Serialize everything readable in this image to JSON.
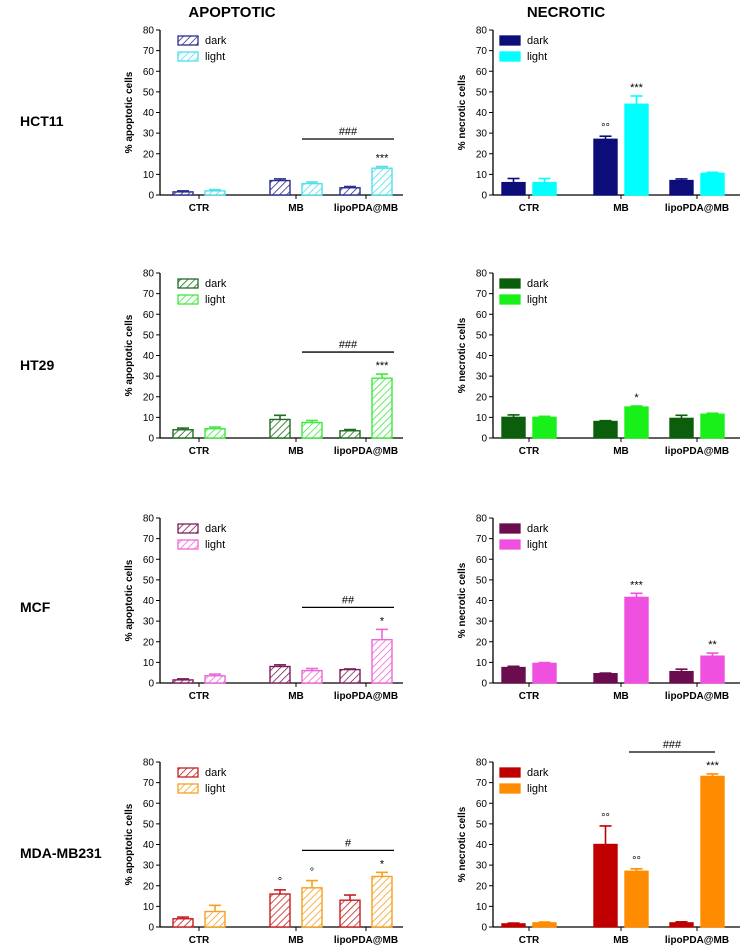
{
  "headers": {
    "left": "APOPTOTIC",
    "right": "NECROTIC"
  },
  "rows": [
    "HCT11",
    "HT29",
    "MCF",
    "MDA-MB231"
  ],
  "legend": {
    "dark": "dark",
    "light": "light"
  },
  "chart_data": [
    {
      "type": "bar",
      "row": "HCT11",
      "panel": "apoptotic",
      "ylabel": "% apoptotic cells",
      "ylim": [
        0,
        80
      ],
      "yticks": [
        0,
        10,
        20,
        30,
        40,
        50,
        60,
        70,
        80
      ],
      "categories": [
        "CTR",
        "MB",
        "lipoPDA@MB"
      ],
      "hatched": true,
      "colors": {
        "dark": "#2b2e8c",
        "light": "#4fe0e8"
      },
      "series": [
        {
          "name": "dark",
          "values": [
            1.5,
            7,
            3.5
          ],
          "errors": [
            0.5,
            0.8,
            0.6
          ],
          "marks": [
            "",
            "",
            ""
          ]
        },
        {
          "name": "light",
          "values": [
            2,
            5.5,
            13
          ],
          "errors": [
            0.6,
            0.8,
            0.8
          ],
          "marks": [
            "",
            "",
            "***"
          ]
        }
      ],
      "bracket": {
        "from": "MB",
        "to": "lipoPDA@MB",
        "label": "###"
      }
    },
    {
      "type": "bar",
      "row": "HCT11",
      "panel": "necrotic",
      "ylabel": "% necrotic cells",
      "ylim": [
        0,
        80
      ],
      "yticks": [
        0,
        10,
        20,
        30,
        40,
        50,
        60,
        70,
        80
      ],
      "categories": [
        "CTR",
        "MB",
        "lipoPDA@MB"
      ],
      "hatched": false,
      "colors": {
        "dark": "#0d0d7a",
        "light": "#00ffff"
      },
      "series": [
        {
          "name": "dark",
          "values": [
            6,
            27,
            7
          ],
          "errors": [
            2,
            1.5,
            0.8
          ],
          "marks": [
            "",
            "°°",
            ""
          ]
        },
        {
          "name": "light",
          "values": [
            6,
            44,
            10.5
          ],
          "errors": [
            2,
            4,
            0.5
          ],
          "marks": [
            "",
            "***",
            ""
          ]
        }
      ],
      "bracket": null
    },
    {
      "type": "bar",
      "row": "HT29",
      "panel": "apoptotic",
      "ylabel": "% apoptotic cells",
      "ylim": [
        0,
        80
      ],
      "yticks": [
        0,
        10,
        20,
        30,
        40,
        50,
        60,
        70,
        80
      ],
      "categories": [
        "CTR",
        "MB",
        "lipoPDA@MB"
      ],
      "hatched": true,
      "colors": {
        "dark": "#1f6b1f",
        "light": "#3ee83e"
      },
      "series": [
        {
          "name": "dark",
          "values": [
            4,
            9,
            3.5
          ],
          "errors": [
            0.8,
            2,
            0.6
          ],
          "marks": [
            "",
            "",
            ""
          ]
        },
        {
          "name": "light",
          "values": [
            4.5,
            7.5,
            29
          ],
          "errors": [
            0.8,
            1,
            2
          ],
          "marks": [
            "",
            "",
            "***"
          ]
        }
      ],
      "bracket": {
        "from": "MB",
        "to": "lipoPDA@MB",
        "label": "###"
      }
    },
    {
      "type": "bar",
      "row": "HT29",
      "panel": "necrotic",
      "ylabel": "% necrotic cells",
      "ylim": [
        0,
        80
      ],
      "yticks": [
        0,
        10,
        20,
        30,
        40,
        50,
        60,
        70,
        80
      ],
      "categories": [
        "CTR",
        "MB",
        "lipoPDA@MB"
      ],
      "hatched": false,
      "colors": {
        "dark": "#0b5e0b",
        "light": "#19f019"
      },
      "series": [
        {
          "name": "dark",
          "values": [
            10,
            8,
            9.5
          ],
          "errors": [
            1.2,
            0.4,
            1.5
          ],
          "marks": [
            "",
            "",
            ""
          ]
        },
        {
          "name": "light",
          "values": [
            10,
            15,
            11.5
          ],
          "errors": [
            0.5,
            0.5,
            0.5
          ],
          "marks": [
            "",
            "*",
            ""
          ]
        }
      ],
      "bracket": null
    },
    {
      "type": "bar",
      "row": "MCF",
      "panel": "apoptotic",
      "ylabel": "% apoptotic cells",
      "ylim": [
        0,
        80
      ],
      "yticks": [
        0,
        10,
        20,
        30,
        40,
        50,
        60,
        70,
        80
      ],
      "categories": [
        "CTR",
        "MB",
        "lipoPDA@MB"
      ],
      "hatched": true,
      "colors": {
        "dark": "#7a1f5a",
        "light": "#ee66d6"
      },
      "series": [
        {
          "name": "dark",
          "values": [
            1.5,
            8,
            6.5
          ],
          "errors": [
            0.5,
            0.8,
            0.3
          ],
          "marks": [
            "",
            "",
            ""
          ]
        },
        {
          "name": "light",
          "values": [
            3.5,
            6,
            21
          ],
          "errors": [
            0.8,
            1,
            5
          ],
          "marks": [
            "",
            "",
            "*"
          ]
        }
      ],
      "bracket": {
        "from": "MB",
        "to": "lipoPDA@MB",
        "label": "##"
      }
    },
    {
      "type": "bar",
      "row": "MCF",
      "panel": "necrotic",
      "ylabel": "% necrotic cells",
      "ylim": [
        0,
        80
      ],
      "yticks": [
        0,
        10,
        20,
        30,
        40,
        50,
        60,
        70,
        80
      ],
      "categories": [
        "CTR",
        "MB",
        "lipoPDA@MB"
      ],
      "hatched": false,
      "colors": {
        "dark": "#6a0d4e",
        "light": "#f050e0"
      },
      "series": [
        {
          "name": "dark",
          "values": [
            7.5,
            4.5,
            5.5
          ],
          "errors": [
            0.6,
            0.3,
            1.2
          ],
          "marks": [
            "",
            "",
            ""
          ]
        },
        {
          "name": "light",
          "values": [
            9.5,
            41.5,
            13
          ],
          "errors": [
            0.4,
            2,
            1.5
          ],
          "marks": [
            "",
            "***",
            "**"
          ]
        }
      ],
      "bracket": null
    },
    {
      "type": "bar",
      "row": "MDA-MB231",
      "panel": "apoptotic",
      "ylabel": "% apoptotic cells",
      "ylim": [
        0,
        80
      ],
      "yticks": [
        0,
        10,
        20,
        30,
        40,
        50,
        60,
        70,
        80
      ],
      "categories": [
        "CTR",
        "MB",
        "lipoPDA@MB"
      ],
      "hatched": true,
      "colors": {
        "dark": "#c81e1e",
        "light": "#f5a020"
      },
      "series": [
        {
          "name": "dark",
          "values": [
            4,
            16,
            13
          ],
          "errors": [
            0.8,
            2,
            2.5
          ],
          "marks": [
            "",
            "°",
            ""
          ]
        },
        {
          "name": "light",
          "values": [
            7.5,
            19,
            24.5
          ],
          "errors": [
            3,
            3.5,
            2
          ],
          "marks": [
            "",
            "°",
            "*"
          ]
        }
      ],
      "bracket": {
        "from": "MB",
        "to": "lipoPDA@MB",
        "label": "#"
      }
    },
    {
      "type": "bar",
      "row": "MDA-MB231",
      "panel": "necrotic",
      "ylabel": "% necrotic cells",
      "ylim": [
        0,
        80
      ],
      "yticks": [
        0,
        10,
        20,
        30,
        40,
        50,
        60,
        70,
        80
      ],
      "categories": [
        "CTR",
        "MB",
        "lipoPDA@MB"
      ],
      "hatched": false,
      "colors": {
        "dark": "#c00000",
        "light": "#ff8c00"
      },
      "series": [
        {
          "name": "dark",
          "values": [
            1.5,
            40,
            2
          ],
          "errors": [
            0.4,
            9,
            0.5
          ],
          "marks": [
            "",
            "°°",
            ""
          ]
        },
        {
          "name": "light",
          "values": [
            2,
            27,
            73
          ],
          "errors": [
            0.4,
            1.2,
            1.2
          ],
          "marks": [
            "",
            "°°",
            "***"
          ]
        }
      ],
      "bracket": {
        "from": "MB",
        "to": "lipoPDA@MB",
        "label": "###"
      }
    }
  ]
}
